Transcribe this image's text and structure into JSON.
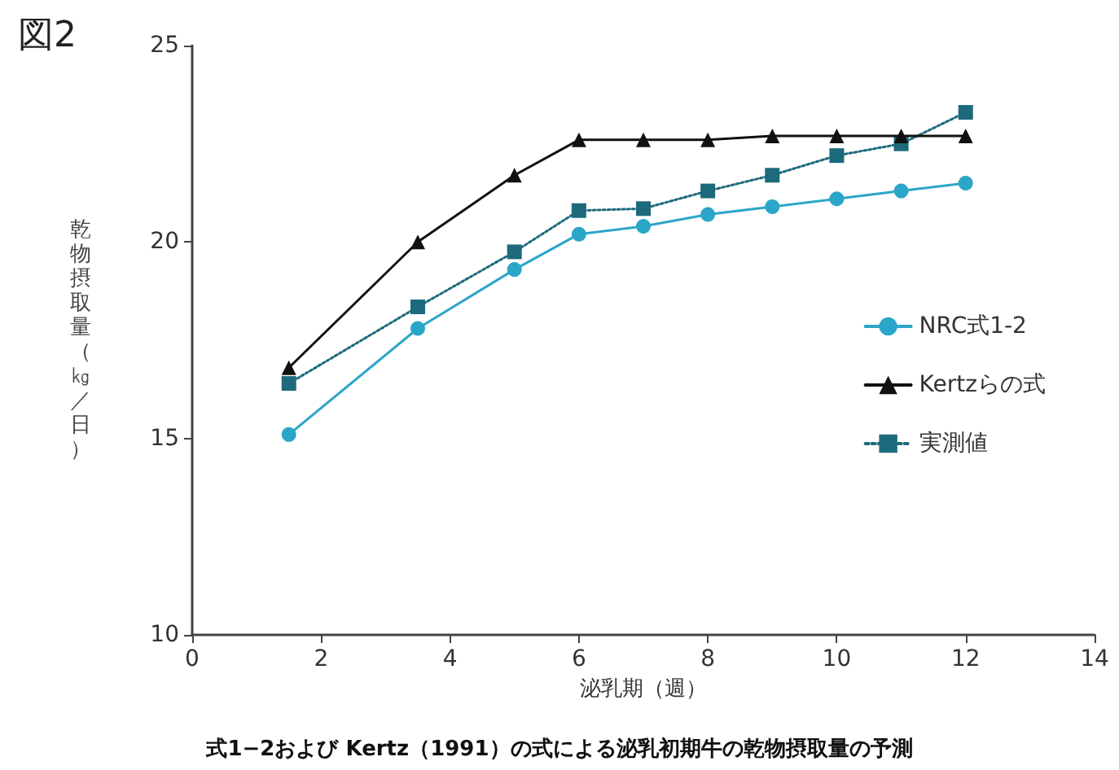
{
  "chart_data": {
    "type": "line",
    "title": "図2",
    "xlabel": "泌乳期（週）",
    "ylabel": "乾物摂取量（㎏／日）",
    "annotations": [
      "式1−2および Kertz（1991）の式による泌乳初期牛の乾物摂取量の予測"
    ],
    "x": [
      1.5,
      3.5,
      5,
      6,
      7,
      8,
      9,
      10,
      11,
      12
    ],
    "series": [
      {
        "name": "NRC式1-2",
        "color": "#2ba6c8",
        "marker": "circle",
        "line_style": "solid",
        "values": [
          15.1,
          17.8,
          19.3,
          20.2,
          20.4,
          20.7,
          20.9,
          21.1,
          21.3,
          21.5
        ]
      },
      {
        "name": "Kertzらの式",
        "color": "#111111",
        "marker": "triangle",
        "line_style": "solid",
        "values": [
          16.8,
          20.0,
          21.7,
          22.6,
          22.6,
          22.6,
          22.7,
          22.7,
          22.7,
          22.7
        ]
      },
      {
        "name": "実測値",
        "color": "#1d6a7c",
        "marker": "square",
        "line_style": "dotted",
        "values": [
          16.4,
          18.35,
          19.75,
          20.8,
          20.85,
          21.3,
          21.7,
          22.2,
          22.5,
          23.3
        ]
      }
    ],
    "xlim": [
      0,
      14
    ],
    "xticks": [
      0,
      2,
      4,
      6,
      8,
      10,
      12,
      14
    ],
    "ylim": [
      10,
      25
    ],
    "yticks": [
      10,
      15,
      20,
      25
    ],
    "grid": false,
    "legend": "right"
  }
}
